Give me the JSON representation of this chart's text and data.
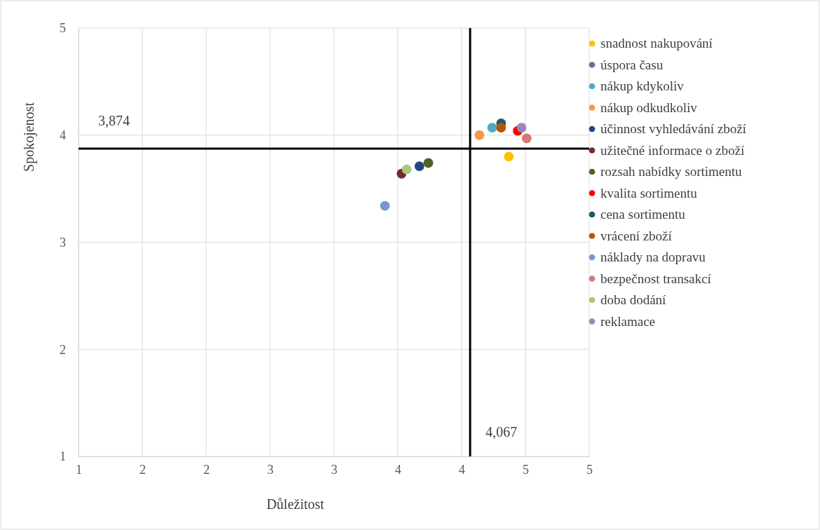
{
  "chart_data": {
    "type": "scatter",
    "xlabel": "Důležitost",
    "ylabel": "Spokojenost",
    "xlim": [
      1,
      5
    ],
    "xticks": [
      {
        "value": 1,
        "label": "1"
      },
      {
        "value": 1.5,
        "label": "2"
      },
      {
        "value": 2,
        "label": "2"
      },
      {
        "value": 2.5,
        "label": "3"
      },
      {
        "value": 3,
        "label": "3"
      },
      {
        "value": 3.5,
        "label": "4"
      },
      {
        "value": 4,
        "label": "4"
      },
      {
        "value": 4.5,
        "label": "5"
      },
      {
        "value": 5,
        "label": "5"
      }
    ],
    "ylim": [
      1,
      5
    ],
    "yticks": [
      1,
      2,
      3,
      4,
      5
    ],
    "grid": true,
    "legend": "right",
    "marker": "circle",
    "ref_lines": [
      {
        "axis": "y",
        "value": 3.874,
        "label": "3,874",
        "color": "#000000"
      },
      {
        "axis": "x",
        "value": 4.067,
        "label": "4,067",
        "color": "#000000"
      }
    ],
    "series": [
      {
        "name": "snadnost nakupování",
        "color": "#ffc000",
        "x": [
          4.37
        ],
        "values": [
          3.8
        ]
      },
      {
        "name": "úspora času",
        "color": "#8064a2",
        "x": [
          null
        ],
        "values": [
          null
        ]
      },
      {
        "name": "nákup kdykoliv",
        "color": "#4bacc6",
        "x": [
          4.24
        ],
        "values": [
          4.07
        ]
      },
      {
        "name": "nákup odkudkoliv",
        "color": "#f79646",
        "x": [
          4.14
        ],
        "values": [
          4.0
        ]
      },
      {
        "name": "účinnost vyhledávání zboží",
        "color": "#1f497d",
        "x": [
          3.67
        ],
        "values": [
          3.71
        ]
      },
      {
        "name": "užitečné informace o zboží",
        "color": "#772c2a",
        "x": [
          3.53
        ],
        "values": [
          3.64
        ]
      },
      {
        "name": "rozsah nabídky sortimentu",
        "color": "#4f6228",
        "x": [
          3.74
        ],
        "values": [
          3.74
        ]
      },
      {
        "name": "kvalita sortimentu",
        "color": "#ff0000",
        "x": [
          4.44
        ],
        "values": [
          4.04
        ]
      },
      {
        "name": "cena sortimentu",
        "color": "#215968",
        "x": [
          4.31
        ],
        "values": [
          4.11
        ]
      },
      {
        "name": "vrácení zboží",
        "color": "#b65708",
        "x": [
          4.31
        ],
        "values": [
          4.07
        ]
      },
      {
        "name": "náklady na dopravu",
        "color": "#729aca",
        "x": [
          3.4
        ],
        "values": [
          3.34
        ]
      },
      {
        "name": "bezpečnost transakcí",
        "color": "#d27a78",
        "x": [
          4.51
        ],
        "values": [
          3.97
        ]
      },
      {
        "name": "doba dodání",
        "color": "#a9c97c",
        "x": [
          3.57
        ],
        "values": [
          3.68
        ]
      },
      {
        "name": "reklamace",
        "color": "#9c86b8",
        "x": [
          4.47
        ],
        "values": [
          4.07
        ]
      }
    ]
  }
}
